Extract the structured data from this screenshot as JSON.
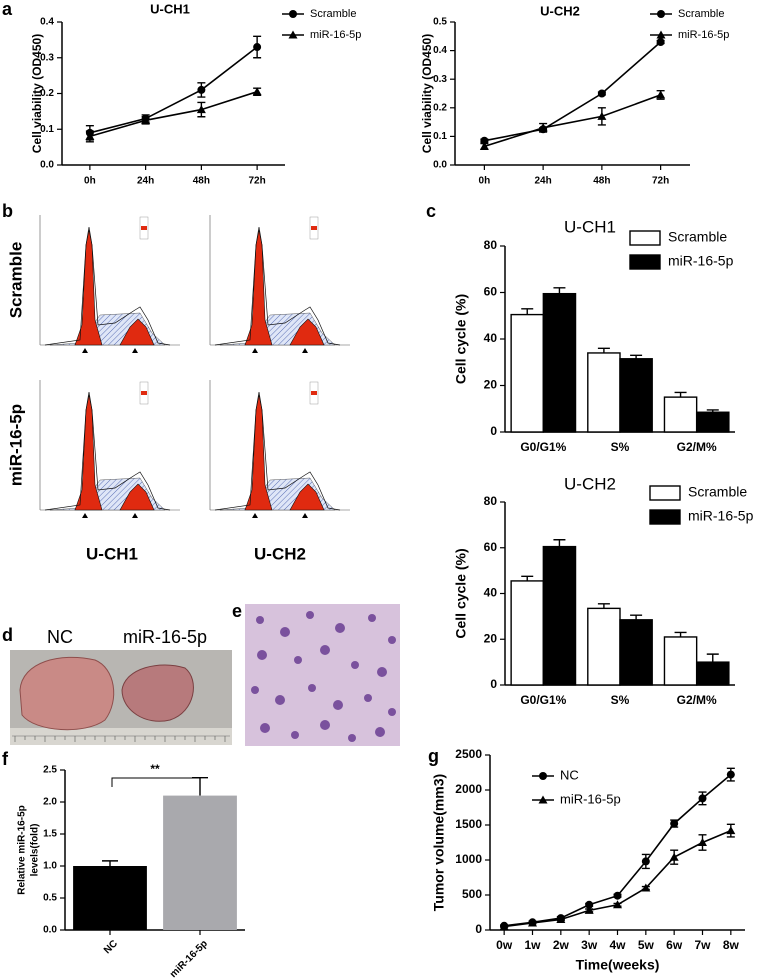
{
  "panel_labels": [
    "a",
    "b",
    "c",
    "d",
    "e",
    "f",
    "g"
  ],
  "flow_cytometry": {
    "row_labels": [
      "Scramble",
      "miR-16-5p"
    ],
    "column_labels": [
      "U-CH1",
      "U-CH2"
    ]
  },
  "tumor_photo": {
    "labels": [
      "NC",
      "miR-16-5p"
    ]
  },
  "chart_data": [
    {
      "type": "line",
      "title": "U-CH1",
      "ylabel": "Cell viability (OD450)",
      "categories": [
        "0h",
        "24h",
        "48h",
        "72h"
      ],
      "ylim": [
        0,
        0.4
      ],
      "yticks": [
        {
          "value": 0,
          "label": "0.0"
        },
        0.1,
        0.2,
        0.3,
        0.4
      ],
      "series": [
        {
          "name": "Scramble",
          "color": "#000000",
          "marker": "circle",
          "values": [
            0.09,
            0.13,
            0.21,
            0.33
          ],
          "errors": [
            0.02,
            0.01,
            0.02,
            0.03
          ]
        },
        {
          "name": "miR-16-5p",
          "color": "#000000",
          "marker": "triangle",
          "values": [
            0.08,
            0.125,
            0.155,
            0.205
          ],
          "errors": [
            0.015,
            0.01,
            0.02,
            0.01
          ]
        }
      ]
    },
    {
      "type": "line",
      "title": "U-CH2",
      "ylabel": "Cell viability (OD450)",
      "categories": [
        "0h",
        "24h",
        "48h",
        "72h"
      ],
      "ylim": [
        0,
        0.5
      ],
      "yticks": [
        {
          "value": 0,
          "label": "0.0"
        },
        0.1,
        0.2,
        0.3,
        0.4,
        0.5
      ],
      "series": [
        {
          "name": "Scramble",
          "color": "#000000",
          "marker": "circle",
          "values": [
            0.085,
            0.125,
            0.25,
            0.43
          ],
          "errors": [
            0.005,
            0.005,
            0.005,
            0.005
          ]
        },
        {
          "name": "miR-16-5p",
          "color": "#000000",
          "marker": "triangle",
          "values": [
            0.065,
            0.13,
            0.17,
            0.245
          ],
          "errors": [
            0.01,
            0.015,
            0.03,
            0.015
          ]
        }
      ]
    },
    {
      "type": "bar",
      "title": "U-CH1",
      "ylabel": "Cell cycle (%)",
      "categories": [
        "G0/G1%",
        "S%",
        "G2/M%"
      ],
      "ylim": [
        0,
        80
      ],
      "yticks": [
        0,
        20,
        40,
        60,
        80
      ],
      "series": [
        {
          "name": "Scramble",
          "color": "#ffffff",
          "values": [
            50.5,
            34,
            15
          ],
          "errors": [
            2.5,
            2,
            2
          ]
        },
        {
          "name": "miR-16-5p",
          "color": "#000000",
          "values": [
            59.5,
            31.5,
            8.5
          ],
          "errors": [
            2.5,
            1.5,
            1
          ]
        }
      ]
    },
    {
      "type": "bar",
      "title": "U-CH2",
      "ylabel": "Cell cycle (%)",
      "categories": [
        "G0/G1%",
        "S%",
        "G2/M%"
      ],
      "ylim": [
        0,
        80
      ],
      "yticks": [
        0,
        20,
        40,
        60,
        80
      ],
      "series": [
        {
          "name": "Scramble",
          "color": "#ffffff",
          "values": [
            45.5,
            33.5,
            21
          ],
          "errors": [
            2,
            2,
            2
          ]
        },
        {
          "name": "miR-16-5p",
          "color": "#000000",
          "values": [
            60.5,
            28.5,
            10
          ],
          "errors": [
            3,
            2,
            3.5
          ]
        }
      ]
    },
    {
      "type": "simplebar",
      "ylabel_lines": [
        "Relative miR-16-5p",
        "levels(fold)"
      ],
      "categories": [
        "NC",
        "miR-16-5p"
      ],
      "values": [
        1.0,
        2.1
      ],
      "errors": [
        0.08,
        0.28
      ],
      "colors": [
        "#000000",
        "#a9a9ad"
      ],
      "annotation": "**",
      "ylim": [
        0,
        2.5
      ],
      "yticks": [
        {
          "value": 0,
          "label": "0.0"
        },
        0.5,
        {
          "value": 1,
          "label": "1.0"
        },
        1.5,
        {
          "value": 2,
          "label": "2.0"
        },
        2.5
      ]
    },
    {
      "type": "line",
      "ylabel": "Tumor volume(mm3)",
      "xlabel": "Time(weeks)",
      "categories": [
        "0w",
        "1w",
        "2w",
        "3w",
        "4w",
        "5w",
        "6w",
        "7w",
        "8w"
      ],
      "ylim": [
        0,
        2500
      ],
      "yticks": [
        0,
        500,
        1000,
        1500,
        2000,
        2500
      ],
      "series": [
        {
          "name": "NC",
          "color": "#000000",
          "marker": "circle",
          "values": [
            60,
            110,
            170,
            360,
            490,
            980,
            1520,
            1880,
            2220
          ],
          "errors": [
            10,
            15,
            20,
            20,
            20,
            100,
            50,
            90,
            90
          ]
        },
        {
          "name": "miR-16-5p",
          "color": "#000000",
          "marker": "triangle",
          "values": [
            50,
            100,
            150,
            280,
            360,
            600,
            1040,
            1250,
            1420
          ],
          "errors": [
            10,
            10,
            15,
            20,
            20,
            20,
            100,
            110,
            90
          ]
        }
      ]
    }
  ]
}
